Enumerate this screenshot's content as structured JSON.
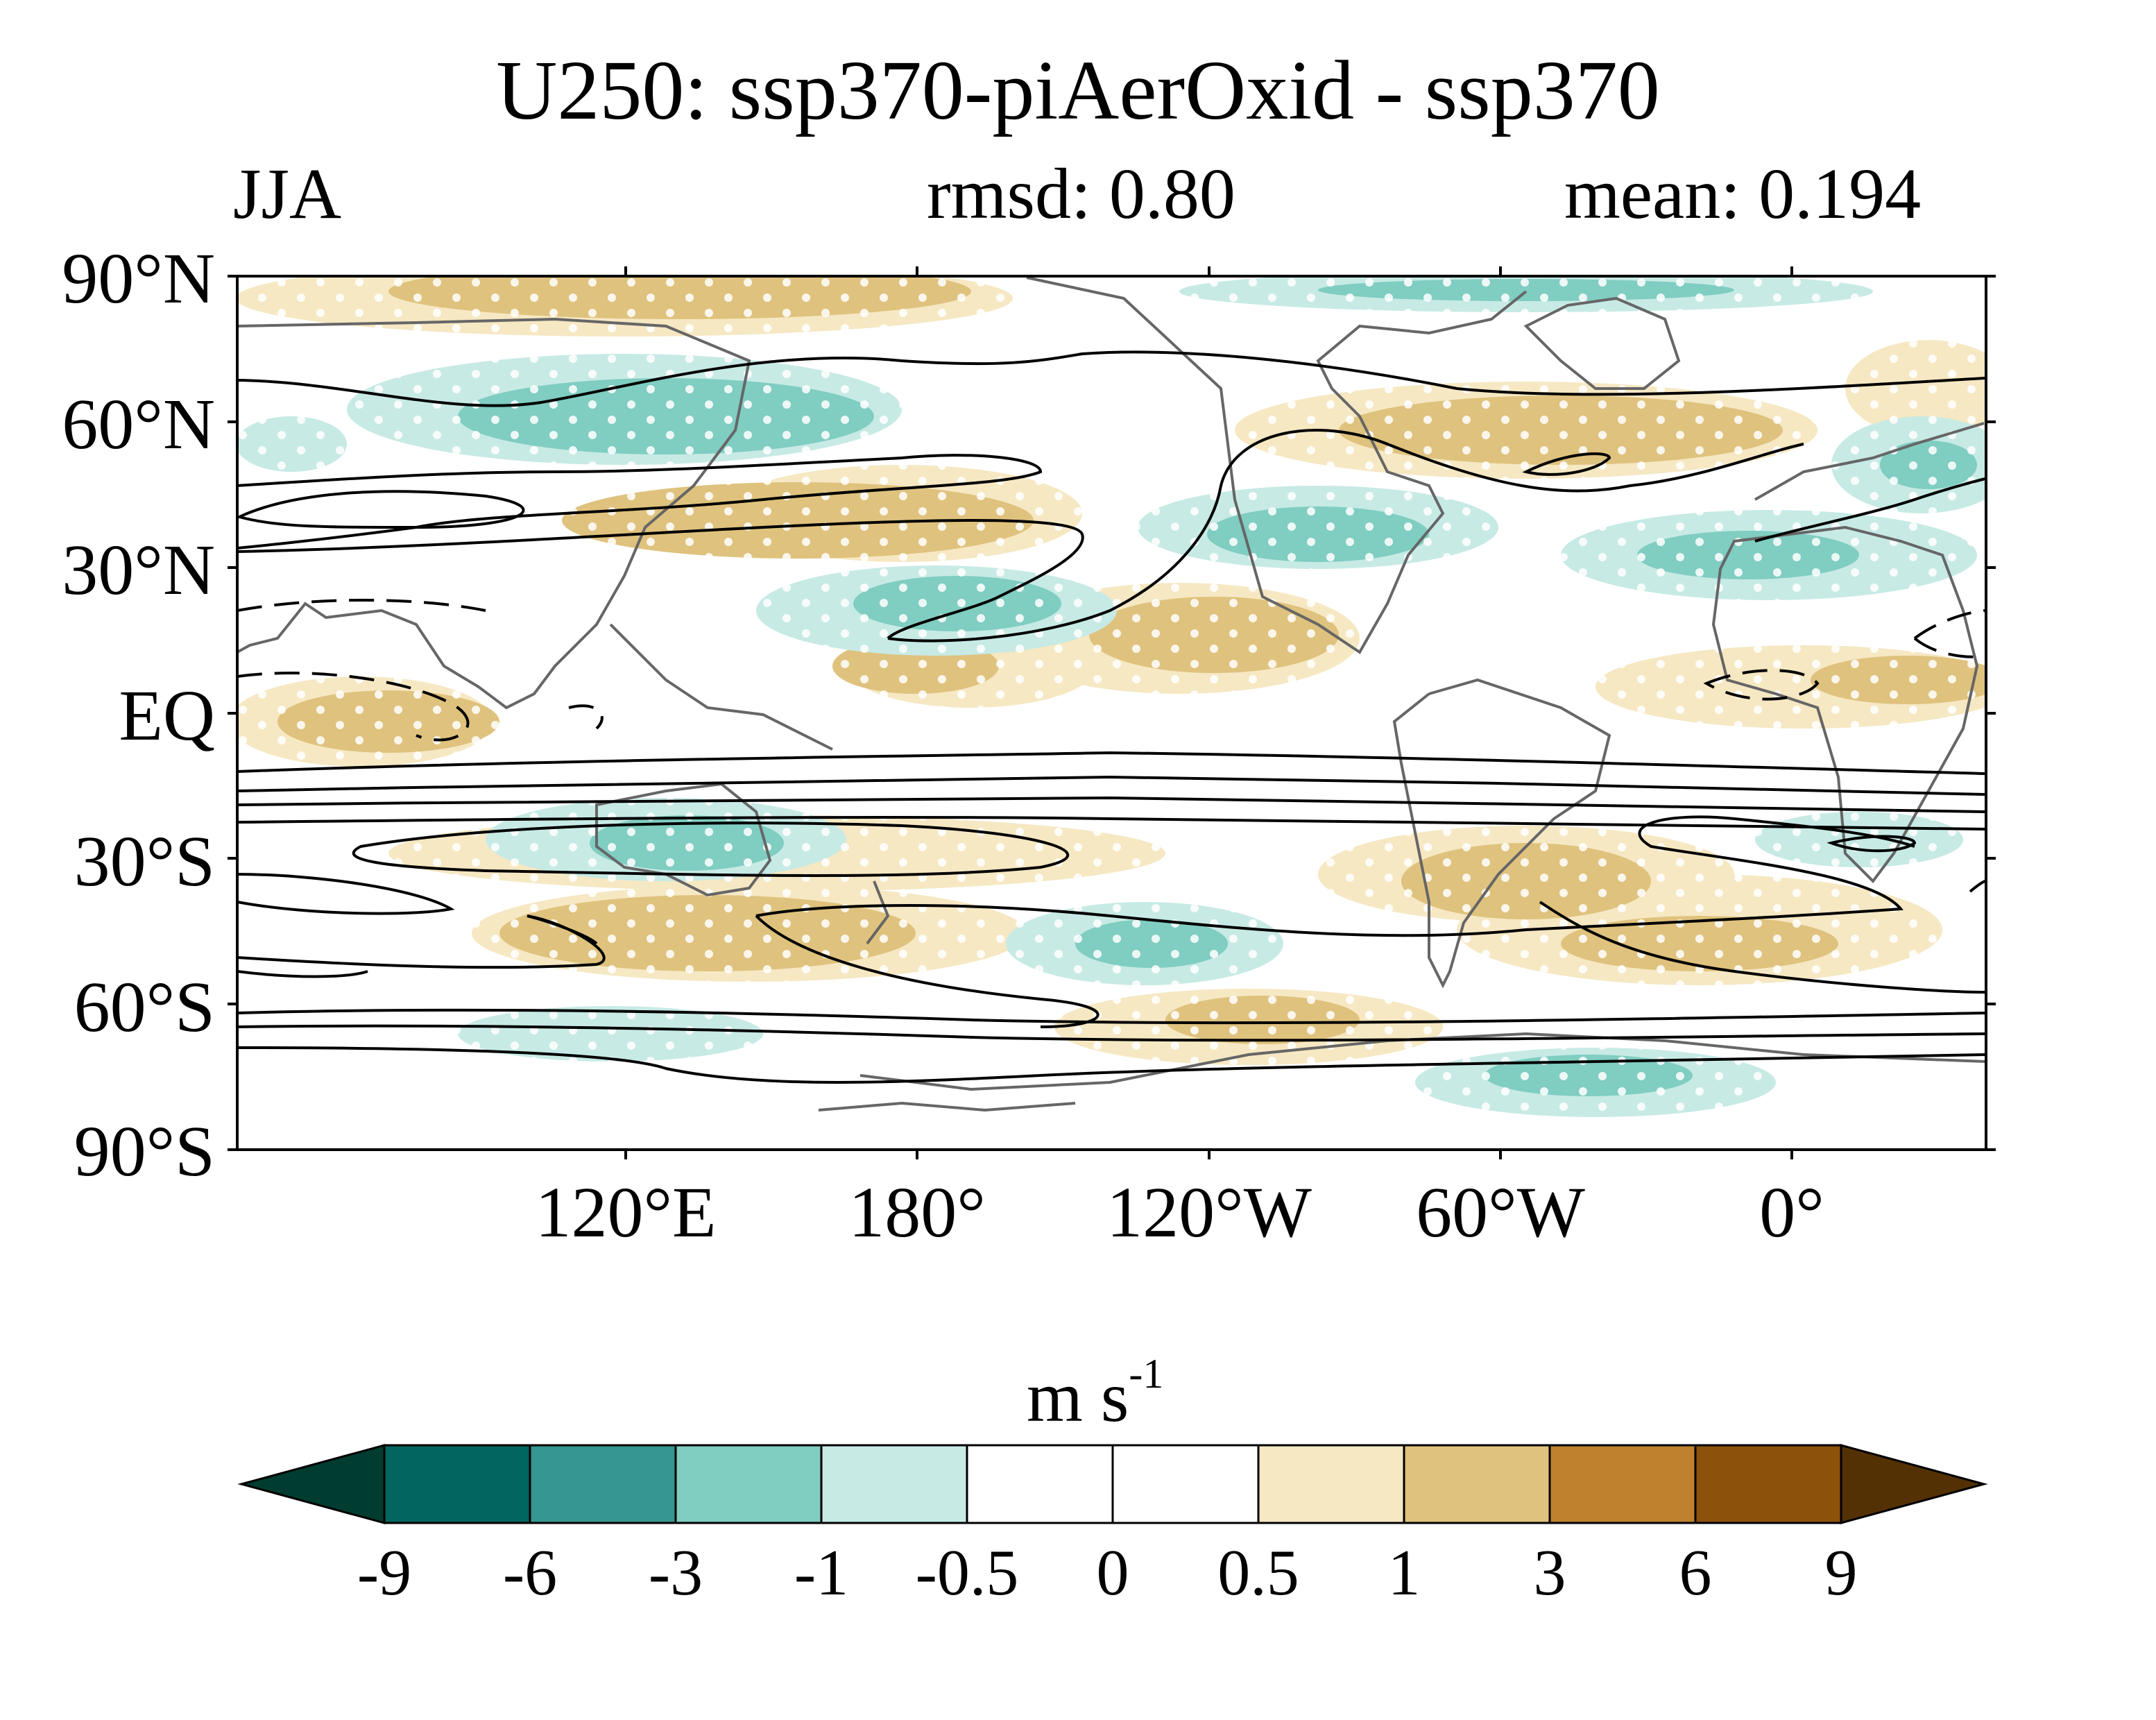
{
  "figure": {
    "title": "U250: ssp370-piAerOxid - ssp370",
    "season": "JJA",
    "rmsd_label": "rmsd: 0.80",
    "mean_label": "mean: 0.194"
  },
  "axes": {
    "lat_labels": [
      "90°N",
      "60°N",
      "30°N",
      "EQ",
      "30°S",
      "60°S",
      "90°S"
    ],
    "lon_labels": [
      "120°E",
      "180°",
      "120°W",
      "60°W",
      "0°"
    ]
  },
  "colorbar": {
    "units": "m s",
    "units_exp": "-1",
    "levels": [
      "-9",
      "-6",
      "-3",
      "-1",
      "-0.5",
      "0",
      "0.5",
      "1",
      "3",
      "6",
      "9"
    ],
    "colors": [
      "#003c30",
      "#01665e",
      "#35978f",
      "#80cdc1",
      "#c7eae5",
      "#ffffff",
      "#ffffff",
      "#f6e8c3",
      "#dfc27d",
      "#bf812d",
      "#8c510a",
      "#543005"
    ]
  },
  "chart_data": {
    "type": "heatmap",
    "title": "U250: ssp370-piAerOxid - ssp370",
    "subtitle_left": "JJA",
    "subtitle_center": "rmsd: 0.80",
    "subtitle_right": "mean: 0.194",
    "variable": "250 hPa zonal wind difference",
    "units": "m s-1",
    "projection": "cylindrical equidistant",
    "lon_range": [
      40,
      400
    ],
    "lat_range": [
      -90,
      90
    ],
    "colorbar_levels": [
      -9,
      -6,
      -3,
      -1,
      -0.5,
      0,
      0.5,
      1,
      3,
      6,
      9
    ],
    "stippling": "white dots mark significant differences",
    "overlay": "black contours of climatological U250"
  }
}
